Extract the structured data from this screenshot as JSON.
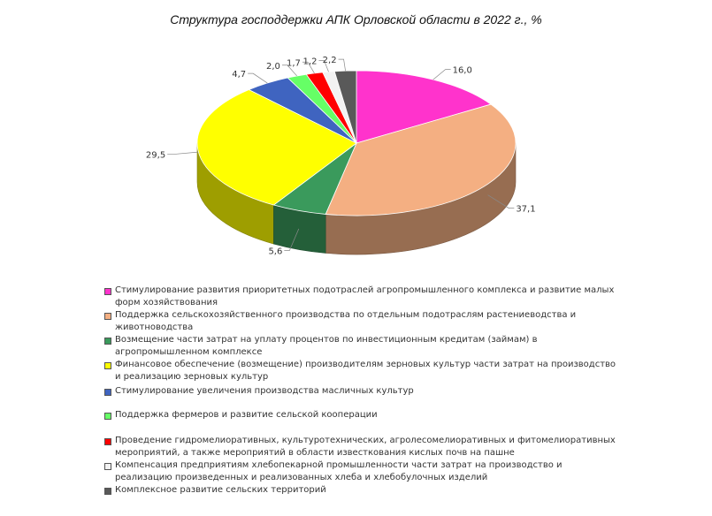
{
  "chart_data": {
    "type": "pie",
    "title": "Структура господдержки АПК Орловской области в 2022 г., %",
    "legend_position": "bottom",
    "slices": [
      {
        "label": "Стимулирование развития приоритетных подотраслей агропромышленного комплекса и развитие малых форм хозяйствования",
        "value": 16.0,
        "value_label": "16,0",
        "color": "#ff33cc"
      },
      {
        "label": "Поддержка сельскохозяйственного производства по отдельным подотраслям растениеводства и животноводства",
        "value": 37.1,
        "value_label": "37,1",
        "color": "#f4af82"
      },
      {
        "label": "Возмещение части затрат на уплату процентов по инвестиционным кредитам (займам) в агропромышленном комплексе",
        "value": 5.6,
        "value_label": "5,6",
        "color": "#3a9a5c"
      },
      {
        "label": "Финансовое обеспечение (возмещение) производителям зерновых культур части затрат на производство и реализацию зерновых культур",
        "value": 29.5,
        "value_label": "29,5",
        "color": "#ffff00"
      },
      {
        "label": "Стимулирование увеличения производства масличных культур",
        "value": 4.7,
        "value_label": "4,7",
        "color": "#3f64c0"
      },
      {
        "label": "Поддержка фермеров и развитие сельской кооперации",
        "value": 2.0,
        "value_label": "2,0",
        "color": "#66ff66"
      },
      {
        "label": "Проведение гидромелиоративных, культуротехнических, агролесомелиоративных и фитомелиоративных мероприятий, а также мероприятий в области известкования кислых почв на пашне",
        "value": 1.7,
        "value_label": "1,7",
        "color": "#ff0000"
      },
      {
        "label": "Компенсация предприятиям хлебопекарной промышленности части затрат на производство и реализацию произведенных и реализованных хлеба и хлебобулочных изделий",
        "value": 1.2,
        "value_label": "1,2",
        "color": "#f2f2f2"
      },
      {
        "label": "Комплексное развитие сельских территорий",
        "value": 2.2,
        "value_label": "2,2",
        "color": "#595959"
      }
    ]
  }
}
